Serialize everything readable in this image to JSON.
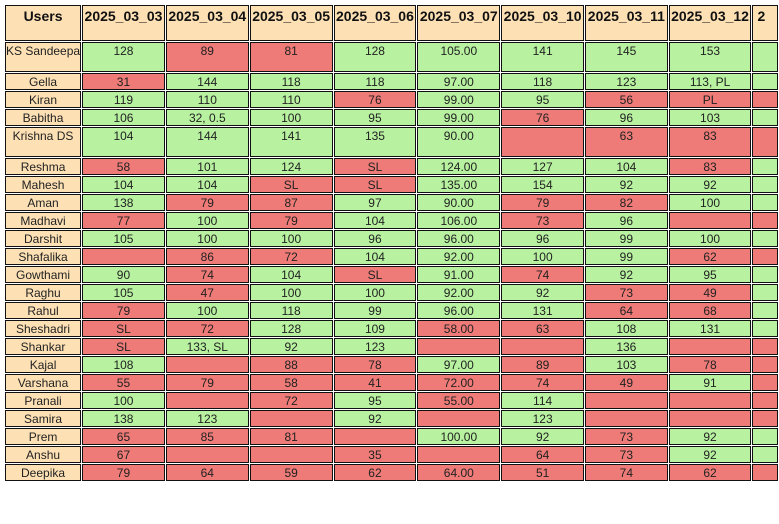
{
  "header": {
    "users_label": "Users",
    "dates": [
      "2025_03_03",
      "2025_03_04",
      "2025_03_05",
      "2025_03_06",
      "2025_03_07",
      "2025_03_10",
      "2025_03_11",
      "2025_03_12"
    ],
    "partial_date": "2"
  },
  "colors": {
    "header_bg": "#fde1b5",
    "ok": "#b8f2a0",
    "bad": "#ee7b77"
  },
  "rows": [
    {
      "user": "KS Sandeepa",
      "tall": true,
      "cells": [
        [
          "128",
          "ok"
        ],
        [
          "89",
          "bad"
        ],
        [
          "81",
          "bad"
        ],
        [
          "128",
          "ok"
        ],
        [
          "105.00",
          "ok"
        ],
        [
          "141",
          "ok"
        ],
        [
          "145",
          "ok"
        ],
        [
          "153",
          "ok"
        ],
        [
          "",
          "ok"
        ]
      ]
    },
    {
      "user": "Gella",
      "cells": [
        [
          "31",
          "bad"
        ],
        [
          "144",
          "ok"
        ],
        [
          "118",
          "ok"
        ],
        [
          "118",
          "ok"
        ],
        [
          "97.00",
          "ok"
        ],
        [
          "118",
          "ok"
        ],
        [
          "123",
          "ok"
        ],
        [
          "113, PL",
          "ok"
        ],
        [
          "",
          "ok"
        ]
      ]
    },
    {
      "user": "Kiran",
      "cells": [
        [
          "119",
          "ok"
        ],
        [
          "110",
          "ok"
        ],
        [
          "110",
          "ok"
        ],
        [
          "76",
          "bad"
        ],
        [
          "99.00",
          "ok"
        ],
        [
          "95",
          "ok"
        ],
        [
          "56",
          "bad"
        ],
        [
          "PL",
          "bad"
        ],
        [
          "",
          "bad"
        ]
      ]
    },
    {
      "user": "Babitha",
      "cells": [
        [
          "106",
          "ok"
        ],
        [
          "32, 0.5",
          "ok"
        ],
        [
          "100",
          "ok"
        ],
        [
          "95",
          "ok"
        ],
        [
          "99.00",
          "ok"
        ],
        [
          "76",
          "bad"
        ],
        [
          "96",
          "ok"
        ],
        [
          "103",
          "ok"
        ],
        [
          "",
          "ok"
        ]
      ]
    },
    {
      "user": "Krishna DS",
      "tall": true,
      "cells": [
        [
          "104",
          "ok"
        ],
        [
          "144",
          "ok"
        ],
        [
          "141",
          "ok"
        ],
        [
          "135",
          "ok"
        ],
        [
          "90.00",
          "ok"
        ],
        [
          "",
          "bad"
        ],
        [
          "63",
          "bad"
        ],
        [
          "83",
          "bad"
        ],
        [
          "",
          "bad"
        ]
      ]
    },
    {
      "user": "Reshma",
      "cells": [
        [
          "58",
          "bad"
        ],
        [
          "101",
          "ok"
        ],
        [
          "124",
          "ok"
        ],
        [
          "SL",
          "bad"
        ],
        [
          "124.00",
          "ok"
        ],
        [
          "127",
          "ok"
        ],
        [
          "104",
          "ok"
        ],
        [
          "83",
          "bad"
        ],
        [
          "",
          "ok"
        ]
      ]
    },
    {
      "user": "Mahesh",
      "cells": [
        [
          "104",
          "ok"
        ],
        [
          "104",
          "ok"
        ],
        [
          "SL",
          "bad"
        ],
        [
          "SL",
          "bad"
        ],
        [
          "135.00",
          "ok"
        ],
        [
          "154",
          "ok"
        ],
        [
          "92",
          "ok"
        ],
        [
          "92",
          "ok"
        ],
        [
          "",
          "ok"
        ]
      ]
    },
    {
      "user": "Aman",
      "cells": [
        [
          "138",
          "ok"
        ],
        [
          "79",
          "bad"
        ],
        [
          "87",
          "bad"
        ],
        [
          "97",
          "ok"
        ],
        [
          "90.00",
          "ok"
        ],
        [
          "79",
          "bad"
        ],
        [
          "82",
          "bad"
        ],
        [
          "100",
          "ok"
        ],
        [
          "",
          "ok"
        ]
      ]
    },
    {
      "user": "Madhavi",
      "cells": [
        [
          "77",
          "bad"
        ],
        [
          "100",
          "ok"
        ],
        [
          "79",
          "bad"
        ],
        [
          "104",
          "ok"
        ],
        [
          "106.00",
          "ok"
        ],
        [
          "73",
          "bad"
        ],
        [
          "96",
          "ok"
        ],
        [
          "",
          "bad"
        ],
        [
          "",
          "bad"
        ]
      ]
    },
    {
      "user": "Darshit",
      "cells": [
        [
          "105",
          "ok"
        ],
        [
          "100",
          "ok"
        ],
        [
          "100",
          "ok"
        ],
        [
          "96",
          "ok"
        ],
        [
          "96.00",
          "ok"
        ],
        [
          "96",
          "ok"
        ],
        [
          "99",
          "ok"
        ],
        [
          "100",
          "ok"
        ],
        [
          "",
          "ok"
        ]
      ]
    },
    {
      "user": "Shafalika",
      "cells": [
        [
          "",
          "bad"
        ],
        [
          "86",
          "bad"
        ],
        [
          "72",
          "bad"
        ],
        [
          "104",
          "ok"
        ],
        [
          "92.00",
          "ok"
        ],
        [
          "100",
          "ok"
        ],
        [
          "99",
          "ok"
        ],
        [
          "62",
          "bad"
        ],
        [
          "",
          "bad"
        ]
      ]
    },
    {
      "user": "Gowthami",
      "cells": [
        [
          "90",
          "ok"
        ],
        [
          "74",
          "bad"
        ],
        [
          "104",
          "ok"
        ],
        [
          "SL",
          "bad"
        ],
        [
          "91.00",
          "ok"
        ],
        [
          "74",
          "bad"
        ],
        [
          "92",
          "ok"
        ],
        [
          "95",
          "ok"
        ],
        [
          "",
          "ok"
        ]
      ]
    },
    {
      "user": "Raghu",
      "cells": [
        [
          "105",
          "ok"
        ],
        [
          "47",
          "bad"
        ],
        [
          "100",
          "ok"
        ],
        [
          "100",
          "ok"
        ],
        [
          "92.00",
          "ok"
        ],
        [
          "92",
          "ok"
        ],
        [
          "73",
          "bad"
        ],
        [
          "49",
          "bad"
        ],
        [
          "",
          "ok"
        ]
      ]
    },
    {
      "user": "Rahul",
      "cells": [
        [
          "79",
          "bad"
        ],
        [
          "100",
          "ok"
        ],
        [
          "118",
          "ok"
        ],
        [
          "99",
          "ok"
        ],
        [
          "96.00",
          "ok"
        ],
        [
          "131",
          "ok"
        ],
        [
          "64",
          "bad"
        ],
        [
          "68",
          "bad"
        ],
        [
          "",
          "ok"
        ]
      ]
    },
    {
      "user": "Sheshadri",
      "cells": [
        [
          "SL",
          "bad"
        ],
        [
          "72",
          "bad"
        ],
        [
          "128",
          "ok"
        ],
        [
          "109",
          "ok"
        ],
        [
          "58.00",
          "bad"
        ],
        [
          "63",
          "bad"
        ],
        [
          "108",
          "ok"
        ],
        [
          "131",
          "ok"
        ],
        [
          "",
          "ok"
        ]
      ]
    },
    {
      "user": "Shankar",
      "cells": [
        [
          "SL",
          "bad"
        ],
        [
          "133, SL",
          "ok"
        ],
        [
          "92",
          "ok"
        ],
        [
          "123",
          "ok"
        ],
        [
          "",
          "bad"
        ],
        [
          "",
          "bad"
        ],
        [
          "136",
          "ok"
        ],
        [
          "",
          "bad"
        ],
        [
          "",
          "bad"
        ]
      ]
    },
    {
      "user": "Kajal",
      "cells": [
        [
          "108",
          "ok"
        ],
        [
          "",
          "bad"
        ],
        [
          "88",
          "bad"
        ],
        [
          "78",
          "bad"
        ],
        [
          "97.00",
          "ok"
        ],
        [
          "89",
          "bad"
        ],
        [
          "103",
          "ok"
        ],
        [
          "78",
          "bad"
        ],
        [
          "",
          "bad"
        ]
      ]
    },
    {
      "user": "Varshana",
      "cells": [
        [
          "55",
          "bad"
        ],
        [
          "79",
          "bad"
        ],
        [
          "58",
          "bad"
        ],
        [
          "41",
          "bad"
        ],
        [
          "72.00",
          "bad"
        ],
        [
          "74",
          "bad"
        ],
        [
          "49",
          "bad"
        ],
        [
          "91",
          "ok"
        ],
        [
          "",
          "bad"
        ]
      ]
    },
    {
      "user": "Pranali",
      "cells": [
        [
          "100",
          "ok"
        ],
        [
          "",
          "bad"
        ],
        [
          "72",
          "bad"
        ],
        [
          "95",
          "ok"
        ],
        [
          "55.00",
          "bad"
        ],
        [
          "114",
          "ok"
        ],
        [
          "",
          "bad"
        ],
        [
          "",
          "bad"
        ],
        [
          "",
          "bad"
        ]
      ]
    },
    {
      "user": "Samira",
      "cells": [
        [
          "138",
          "ok"
        ],
        [
          "123",
          "ok"
        ],
        [
          "",
          "bad"
        ],
        [
          "92",
          "ok"
        ],
        [
          "",
          "bad"
        ],
        [
          "123",
          "ok"
        ],
        [
          "",
          "bad"
        ],
        [
          "",
          "bad"
        ],
        [
          "",
          "bad"
        ]
      ]
    },
    {
      "user": "Prem",
      "cells": [
        [
          "65",
          "bad"
        ],
        [
          "85",
          "bad"
        ],
        [
          "81",
          "bad"
        ],
        [
          "",
          "bad"
        ],
        [
          "100.00",
          "ok"
        ],
        [
          "92",
          "ok"
        ],
        [
          "73",
          "bad"
        ],
        [
          "92",
          "ok"
        ],
        [
          "",
          "ok"
        ]
      ]
    },
    {
      "user": "Anshu",
      "cells": [
        [
          "67",
          "bad"
        ],
        [
          "",
          "bad"
        ],
        [
          "",
          "bad"
        ],
        [
          "35",
          "bad"
        ],
        [
          "",
          "bad"
        ],
        [
          "64",
          "bad"
        ],
        [
          "73",
          "bad"
        ],
        [
          "92",
          "ok"
        ],
        [
          "",
          "ok"
        ]
      ]
    },
    {
      "user": "Deepika",
      "cells": [
        [
          "79",
          "bad"
        ],
        [
          "64",
          "bad"
        ],
        [
          "59",
          "bad"
        ],
        [
          "62",
          "bad"
        ],
        [
          "64.00",
          "bad"
        ],
        [
          "51",
          "bad"
        ],
        [
          "74",
          "bad"
        ],
        [
          "62",
          "bad"
        ],
        [
          "",
          "bad"
        ]
      ]
    }
  ]
}
